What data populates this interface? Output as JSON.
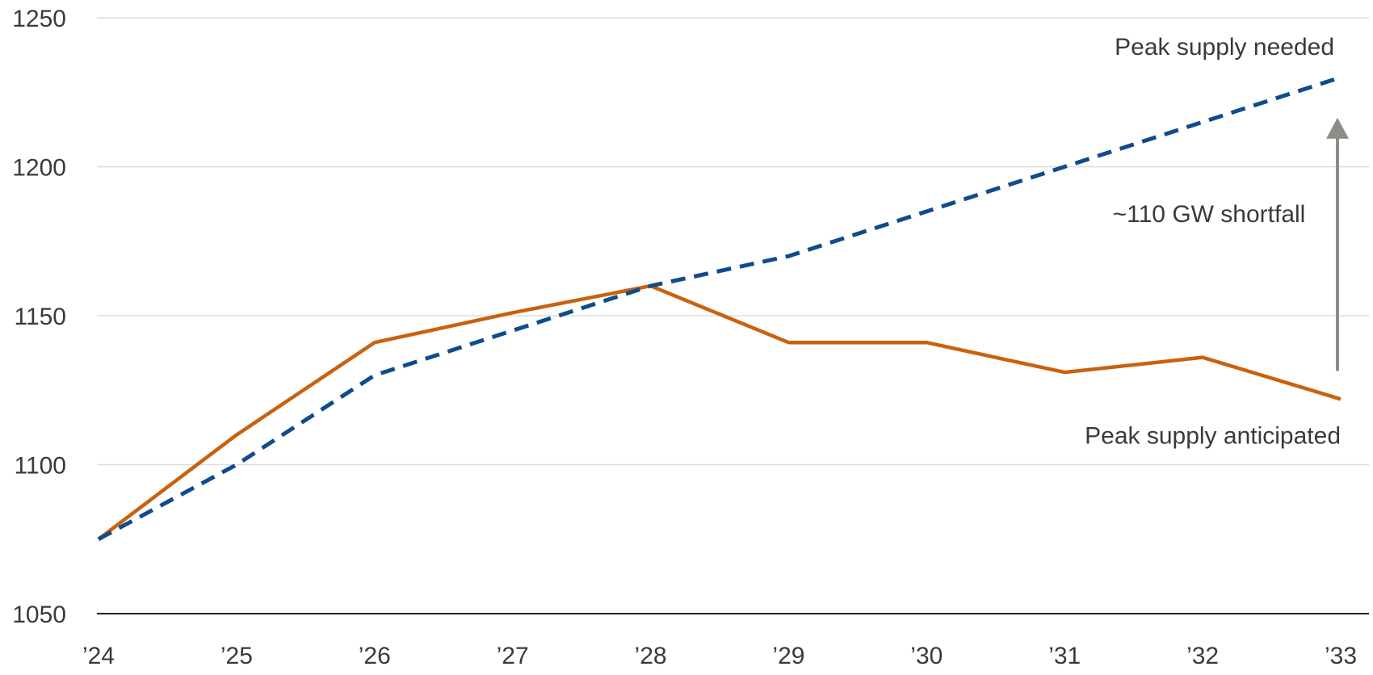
{
  "chart_data": {
    "type": "line",
    "x": [
      "’24",
      "’25",
      "’26",
      "’27",
      "’28",
      "’29",
      "’30",
      "’31",
      "’32",
      "’33"
    ],
    "ylim": [
      1050,
      1250
    ],
    "yticks": [
      1050,
      1100,
      1150,
      1200,
      1250
    ],
    "grid": true,
    "legend": "none",
    "series": [
      {
        "key": "needed",
        "color": "#0f4c8c",
        "style": "dashed",
        "values": [
          1075,
          1100,
          1130,
          1145,
          1160,
          1170,
          1185,
          1200,
          1215,
          1230
        ]
      },
      {
        "key": "anticipated",
        "color": "#c8620f",
        "style": "solid",
        "values": [
          1075,
          1110,
          1141,
          1151,
          1160,
          1141,
          1141,
          1131,
          1136,
          1122
        ]
      }
    ],
    "annotations": {
      "needed_label": "Peak supply needed",
      "anticipated_label": "Peak supply anticipated",
      "shortfall_label": "~110 GW shortfall"
    },
    "colors": {
      "arrow": "#8c8c88",
      "grid": "#dddddd",
      "axis": "#222222",
      "text": "#3a3a3a"
    }
  }
}
